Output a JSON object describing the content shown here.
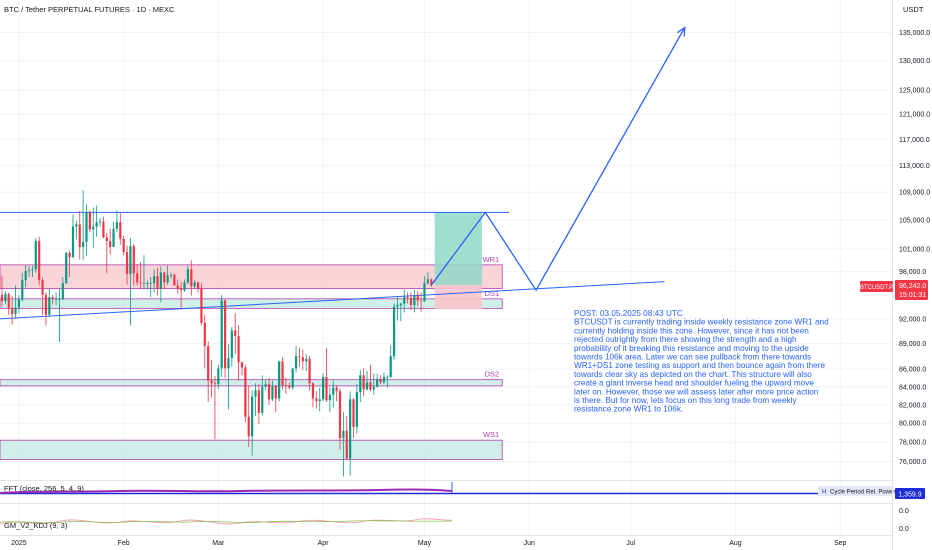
{
  "header": {
    "title": "BTC / Tether PERPETUAL FUTURES · 1D · MEXC",
    "currency": "USDT"
  },
  "price_label": {
    "symbol": "BTCUSDT.P",
    "price": "96,242.0",
    "countdown": "15:01:31",
    "color": "#f23645"
  },
  "indicators": {
    "fft": {
      "label": "FFT (close, 256, 5, 4, 9)",
      "legend": [
        "Cycle Period",
        "Rel. Power"
      ],
      "legend_marker": "H",
      "value": "1,359.9",
      "line_color": "#1e2bd6"
    },
    "kdj": {
      "label": "GM_V2_KDJ (9, 3)",
      "ticks": [
        "0.0",
        "0.0"
      ]
    }
  },
  "annotation": {
    "color": "#2962ff",
    "lines": [
      "POST: 03.05.2025 08:43 UTC",
      "BTCUSDT is currently trading inside weekly resistance zone WR1 and",
      "currently holding inside this zone. However, since it has not been",
      "rejected outrightly from there showing the strength and a high",
      "probability of it breaking this resistance and moving to the upside",
      "towards 106k area. Later we can see pullback from there towards",
      "WR1+DS1 zone testing as support and then bounce again from there",
      "towards clear sky as depicted on the chart. This structure will also",
      "create a giant inverse head and shoulder fueling the upward move",
      "later on. However, those we will assess later after more price action",
      "is there. But for now, lets focus on this long trade from weekly",
      "resistance zone WR1 to 106k."
    ]
  },
  "chart_data": {
    "type": "candlestick",
    "title": "BTC / Tether PERPETUAL FUTURES · 1D · MEXC",
    "y_axis_unit": "USDT",
    "ylim": [
      74500,
      137000
    ],
    "y_ticks": [
      76000,
      78000,
      80000,
      82000,
      84000,
      86000,
      89000,
      92000,
      98000,
      101000,
      105000,
      109000,
      113000,
      117000,
      121000,
      125000,
      130000,
      135000
    ],
    "y_tick_labels": [
      "76,000.0",
      "78,000.0",
      "80,000.0",
      "82,000.0",
      "84,000.0",
      "86,000.0",
      "89,000.0",
      "92,000.0",
      "98,000.0",
      "101,000.0",
      "105,000.0",
      "109,000.0",
      "113,000.0",
      "117,000.0",
      "121,000.0",
      "125,000.0",
      "130,000.0",
      "135,000.0"
    ],
    "x_range": [
      "2024-12-27",
      "2025-09-18"
    ],
    "x_ticks": [
      "2025-01-01",
      "2025-02-01",
      "2025-03-01",
      "2025-04-01",
      "2025-05-01",
      "2025-06-01",
      "2025-07-01",
      "2025-08-01",
      "2025-09-01"
    ],
    "x_tick_labels": [
      "2025",
      "Feb",
      "Mar",
      "Apr",
      "May",
      "Jun",
      "Jul",
      "Aug",
      "Sep"
    ],
    "colors": {
      "up": "#089981",
      "down": "#f23645"
    },
    "candles": [
      [
        "2024-12-27",
        95000,
        97500,
        93500,
        94200
      ],
      [
        "2024-12-28",
        94200,
        95500,
        93800,
        95100
      ],
      [
        "2024-12-29",
        95100,
        95300,
        92500,
        93300
      ],
      [
        "2024-12-30",
        93300,
        94900,
        91300,
        92600
      ],
      [
        "2024-12-31",
        92600,
        96200,
        92000,
        93400
      ],
      [
        "2025-01-01",
        93400,
        95000,
        92700,
        94400
      ],
      [
        "2025-01-02",
        94400,
        97800,
        94200,
        96900
      ],
      [
        "2025-01-03",
        96900,
        98900,
        96000,
        98100
      ],
      [
        "2025-01-04",
        98100,
        98700,
        97300,
        98200
      ],
      [
        "2025-01-05",
        98200,
        98800,
        97300,
        98300
      ],
      [
        "2025-01-06",
        98300,
        102500,
        97900,
        102100
      ],
      [
        "2025-01-07",
        102100,
        102700,
        96200,
        96900
      ],
      [
        "2025-01-08",
        96900,
        97200,
        92500,
        95000
      ],
      [
        "2025-01-09",
        95000,
        95300,
        91200,
        92500
      ],
      [
        "2025-01-10",
        92500,
        95800,
        92200,
        94700
      ],
      [
        "2025-01-11",
        94700,
        95000,
        93800,
        94500
      ],
      [
        "2025-01-12",
        94500,
        95300,
        93700,
        94500
      ],
      [
        "2025-01-13",
        94500,
        95800,
        89200,
        94500
      ],
      [
        "2025-01-14",
        94500,
        97300,
        94300,
        96500
      ],
      [
        "2025-01-15",
        96500,
        100600,
        96400,
        100500
      ],
      [
        "2025-01-16",
        100500,
        100800,
        97300,
        99900
      ],
      [
        "2025-01-17",
        99900,
        105800,
        99900,
        104100
      ],
      [
        "2025-01-18",
        104100,
        104900,
        102300,
        104400
      ],
      [
        "2025-01-19",
        104400,
        106300,
        99600,
        101300
      ],
      [
        "2025-01-20",
        101300,
        109300,
        99500,
        102000
      ],
      [
        "2025-01-21",
        102000,
        107200,
        100100,
        106100
      ],
      [
        "2025-01-22",
        106100,
        106400,
        103300,
        103700
      ],
      [
        "2025-01-23",
        103700,
        106800,
        101200,
        104100
      ],
      [
        "2025-01-24",
        104100,
        107100,
        102700,
        104700
      ],
      [
        "2025-01-25",
        104700,
        105300,
        104100,
        104800
      ],
      [
        "2025-01-26",
        104800,
        105500,
        102500,
        102600
      ],
      [
        "2025-01-27",
        102600,
        103200,
        97800,
        102100
      ],
      [
        "2025-01-28",
        102100,
        103800,
        100300,
        101300
      ],
      [
        "2025-01-29",
        101300,
        104800,
        101300,
        103800
      ],
      [
        "2025-01-30",
        103800,
        106400,
        103300,
        104700
      ],
      [
        "2025-01-31",
        104700,
        106000,
        101600,
        102400
      ],
      [
        "2025-02-01",
        102400,
        102800,
        100200,
        100600
      ],
      [
        "2025-02-02",
        100600,
        101500,
        96300,
        97700
      ],
      [
        "2025-02-03",
        97700,
        102500,
        91200,
        101400
      ],
      [
        "2025-02-04",
        101400,
        101700,
        96200,
        97800
      ],
      [
        "2025-02-05",
        97800,
        99000,
        96200,
        96600
      ],
      [
        "2025-02-06",
        96600,
        99300,
        95700,
        96500
      ],
      [
        "2025-02-07",
        96500,
        100200,
        95700,
        96500
      ],
      [
        "2025-02-08",
        96500,
        96800,
        95700,
        96500
      ],
      [
        "2025-02-09",
        96500,
        97300,
        94700,
        96500
      ],
      [
        "2025-02-10",
        96500,
        98300,
        95300,
        97400
      ],
      [
        "2025-02-11",
        97400,
        98500,
        94900,
        95800
      ],
      [
        "2025-02-12",
        95800,
        98700,
        94100,
        97900
      ],
      [
        "2025-02-13",
        97900,
        98000,
        95700,
        96600
      ],
      [
        "2025-02-14",
        96600,
        98800,
        96300,
        97500
      ],
      [
        "2025-02-15",
        97500,
        97900,
        97100,
        97600
      ],
      [
        "2025-02-16",
        97600,
        97700,
        96200,
        96200
      ],
      [
        "2025-02-17",
        96200,
        97000,
        95200,
        95800
      ],
      [
        "2025-02-18",
        95800,
        96700,
        93400,
        95600
      ],
      [
        "2025-02-19",
        95600,
        97000,
        95400,
        96600
      ],
      [
        "2025-02-20",
        96600,
        98800,
        96400,
        98300
      ],
      [
        "2025-02-21",
        98300,
        99500,
        94900,
        96100
      ],
      [
        "2025-02-22",
        96100,
        96900,
        95800,
        96600
      ],
      [
        "2025-02-23",
        96600,
        96700,
        95300,
        95800
      ],
      [
        "2025-02-24",
        95800,
        96500,
        91200,
        91500
      ],
      [
        "2025-02-25",
        91500,
        92500,
        86100,
        88700
      ],
      [
        "2025-02-26",
        88700,
        89300,
        82300,
        84700
      ],
      [
        "2025-02-27",
        84700,
        87100,
        82800,
        84400
      ],
      [
        "2025-02-28",
        84400,
        85200,
        78300,
        84300
      ],
      [
        "2025-03-01",
        84300,
        86500,
        83800,
        86100
      ],
      [
        "2025-03-02",
        86100,
        95000,
        85100,
        94300
      ],
      [
        "2025-03-03",
        94300,
        94400,
        85000,
        86100
      ],
      [
        "2025-03-04",
        86100,
        88900,
        81500,
        87300
      ],
      [
        "2025-03-05",
        87300,
        91000,
        86300,
        90600
      ],
      [
        "2025-03-06",
        90600,
        92700,
        87800,
        89900
      ],
      [
        "2025-03-07",
        89900,
        91200,
        84700,
        86800
      ],
      [
        "2025-03-08",
        86800,
        86900,
        85300,
        86200
      ],
      [
        "2025-03-09",
        86200,
        86500,
        80100,
        80700
      ],
      [
        "2025-03-10",
        80700,
        84100,
        77500,
        78600
      ],
      [
        "2025-03-11",
        78600,
        83600,
        76600,
        82900
      ],
      [
        "2025-03-12",
        82900,
        84400,
        80800,
        83600
      ],
      [
        "2025-03-13",
        83600,
        84300,
        79900,
        81100
      ],
      [
        "2025-03-14",
        81100,
        85300,
        80800,
        84000
      ],
      [
        "2025-03-15",
        84000,
        84700,
        83600,
        84300
      ],
      [
        "2025-03-16",
        84300,
        85000,
        82000,
        82600
      ],
      [
        "2025-03-17",
        82600,
        84700,
        82400,
        84100
      ],
      [
        "2025-03-18",
        84100,
        84200,
        81200,
        82700
      ],
      [
        "2025-03-19",
        82700,
        87000,
        82400,
        86900
      ],
      [
        "2025-03-20",
        86900,
        87400,
        83700,
        84200
      ],
      [
        "2025-03-21",
        84200,
        85000,
        83200,
        84100
      ],
      [
        "2025-03-22",
        84100,
        84500,
        83700,
        83900
      ],
      [
        "2025-03-23",
        83900,
        86100,
        83700,
        86100
      ],
      [
        "2025-03-24",
        86100,
        88700,
        85600,
        87500
      ],
      [
        "2025-03-25",
        87500,
        88500,
        86300,
        87400
      ],
      [
        "2025-03-26",
        87400,
        88300,
        85900,
        86900
      ],
      [
        "2025-03-27",
        86900,
        87700,
        85800,
        87200
      ],
      [
        "2025-03-28",
        87200,
        87500,
        83600,
        84400
      ],
      [
        "2025-03-29",
        84400,
        84500,
        81700,
        82700
      ],
      [
        "2025-03-30",
        82700,
        83500,
        81600,
        82400
      ],
      [
        "2025-03-31",
        82400,
        83900,
        81300,
        82600
      ],
      [
        "2025-04-01",
        82600,
        85500,
        82400,
        85100
      ],
      [
        "2025-04-02",
        85100,
        88500,
        82300,
        82500
      ],
      [
        "2025-04-03",
        82500,
        83900,
        81200,
        83100
      ],
      [
        "2025-04-04",
        83100,
        84700,
        81700,
        83900
      ],
      [
        "2025-04-05",
        83900,
        84200,
        82400,
        83500
      ],
      [
        "2025-04-06",
        83500,
        83800,
        77200,
        78400
      ],
      [
        "2025-04-07",
        78400,
        81200,
        74500,
        79200
      ],
      [
        "2025-04-08",
        79200,
        80800,
        76200,
        76300
      ],
      [
        "2025-04-09",
        76300,
        83500,
        74600,
        82600
      ],
      [
        "2025-04-10",
        82600,
        82700,
        78400,
        79600
      ],
      [
        "2025-04-11",
        79600,
        84300,
        78900,
        83400
      ],
      [
        "2025-04-12",
        83400,
        85900,
        82300,
        85300
      ],
      [
        "2025-04-13",
        85300,
        86100,
        83000,
        83700
      ],
      [
        "2025-04-14",
        83700,
        85800,
        83600,
        84500
      ],
      [
        "2025-04-15",
        84500,
        86500,
        83500,
        83700
      ],
      [
        "2025-04-16",
        83700,
        85500,
        83100,
        84000
      ],
      [
        "2025-04-17",
        84000,
        85500,
        83900,
        84900
      ],
      [
        "2025-04-18",
        84900,
        85300,
        84300,
        84500
      ],
      [
        "2025-04-19",
        84500,
        85600,
        84300,
        85100
      ],
      [
        "2025-04-20",
        85100,
        85300,
        83900,
        85100
      ],
      [
        "2025-04-21",
        85100,
        88800,
        85000,
        87500
      ],
      [
        "2025-04-22",
        87500,
        93900,
        87100,
        93500
      ],
      [
        "2025-04-23",
        93500,
        94700,
        91800,
        93700
      ],
      [
        "2025-04-24",
        93700,
        94000,
        91700,
        93900
      ],
      [
        "2025-04-25",
        93900,
        95700,
        92800,
        94700
      ],
      [
        "2025-04-26",
        94700,
        95300,
        93900,
        94600
      ],
      [
        "2025-04-27",
        94600,
        95300,
        93100,
        93700
      ],
      [
        "2025-04-28",
        93700,
        95600,
        92800,
        94900
      ],
      [
        "2025-04-29",
        94900,
        95500,
        93600,
        94300
      ],
      [
        "2025-04-30",
        94300,
        95300,
        92900,
        94200
      ],
      [
        "2025-05-01",
        94200,
        97400,
        94100,
        96500
      ],
      [
        "2025-05-02",
        96500,
        97900,
        96300,
        97000
      ],
      [
        "2025-05-03",
        97000,
        97100,
        96000,
        96242
      ]
    ],
    "zones": [
      {
        "label": "WR1",
        "from": 95800,
        "to": 98900,
        "x_start": "2024-12-27",
        "x_end": "2025-05-24",
        "fill": "#f7c5cc",
        "border": "#b43cb4"
      },
      {
        "label": "DS1",
        "from": 93300,
        "to": 94500,
        "x_start": "2024-12-27",
        "x_end": "2025-05-24",
        "fill": "#bfe9e0",
        "border": "#b43cb4"
      },
      {
        "label": "DS2",
        "from": 84100,
        "to": 84800,
        "x_start": "2024-12-27",
        "x_end": "2025-05-24",
        "fill": "#bfe9e0",
        "border": "#b43cb4"
      },
      {
        "label": "WS1",
        "from": 76200,
        "to": 78200,
        "x_start": "2024-12-27",
        "x_end": "2025-05-24",
        "fill": "#bfe9e0",
        "border": "#b43cb4"
      }
    ],
    "horizontal_lines": [
      {
        "y": 106100,
        "x_start": "2024-12-27",
        "x_end": "2025-05-26",
        "color": "#2962ff"
      }
    ],
    "trendlines": [
      {
        "points": [
          [
            "2024-12-27",
            92000
          ],
          [
            "2025-07-11",
            96700
          ]
        ],
        "color": "#2962ff"
      }
    ],
    "projection_path": {
      "points": [
        [
          "2025-05-03",
          96242
        ],
        [
          "2025-05-19",
          106100
        ],
        [
          "2025-06-03",
          95600
        ],
        [
          "2025-07-17",
          135900
        ]
      ],
      "color": "#2962ff",
      "arrow": true
    },
    "target_box": {
      "x_start": "2025-05-04",
      "x_end": "2025-05-18",
      "from": 96242,
      "to": 106100,
      "fill": "#8fd8c5",
      "stop_to": 93200,
      "stop_fill": "#f7c5cc"
    }
  }
}
